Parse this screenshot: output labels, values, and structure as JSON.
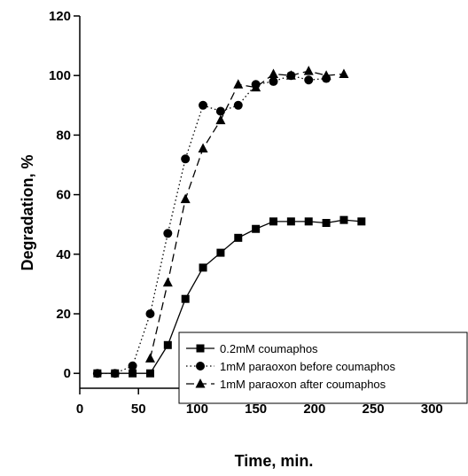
{
  "chart_data": {
    "type": "line",
    "title": "",
    "xlabel": "Time, min.",
    "ylabel": "Degradation, %",
    "xlim": [
      0,
      330
    ],
    "ylim": [
      -5,
      120
    ],
    "xticks": [
      0,
      50,
      100,
      150,
      200,
      250,
      300
    ],
    "yticks": [
      0,
      20,
      40,
      60,
      80,
      100,
      120
    ],
    "grid": false,
    "legend_position": "bottom-right",
    "series": [
      {
        "name": "0.2mM coumaphos",
        "marker": "square",
        "line_style": "solid",
        "x": [
          15,
          30,
          45,
          60,
          75,
          90,
          105,
          120,
          135,
          150,
          165,
          180,
          195,
          210,
          225,
          240
        ],
        "y": [
          0,
          0,
          0,
          0,
          9.5,
          25,
          35.5,
          40.5,
          45.5,
          48.5,
          51,
          51,
          51,
          50.5,
          51.5,
          51
        ]
      },
      {
        "name": "1mM paraoxon before coumaphos",
        "marker": "circle",
        "line_style": "dotted",
        "x": [
          15,
          30,
          45,
          60,
          75,
          90,
          105,
          120,
          135,
          150,
          165,
          180,
          195,
          210
        ],
        "y": [
          0,
          0,
          2.5,
          20,
          47,
          72,
          90,
          88,
          90,
          97,
          98,
          100,
          98.5,
          99
        ]
      },
      {
        "name": "1mM paraoxon after coumaphos",
        "marker": "triangle",
        "line_style": "dashed",
        "x": [
          60,
          75,
          90,
          105,
          120,
          135,
          150,
          165,
          180,
          195,
          210,
          225
        ],
        "y": [
          5,
          30.5,
          58.5,
          75.5,
          85,
          97,
          96,
          100.5,
          100,
          101.5,
          100,
          100.5
        ]
      }
    ]
  }
}
